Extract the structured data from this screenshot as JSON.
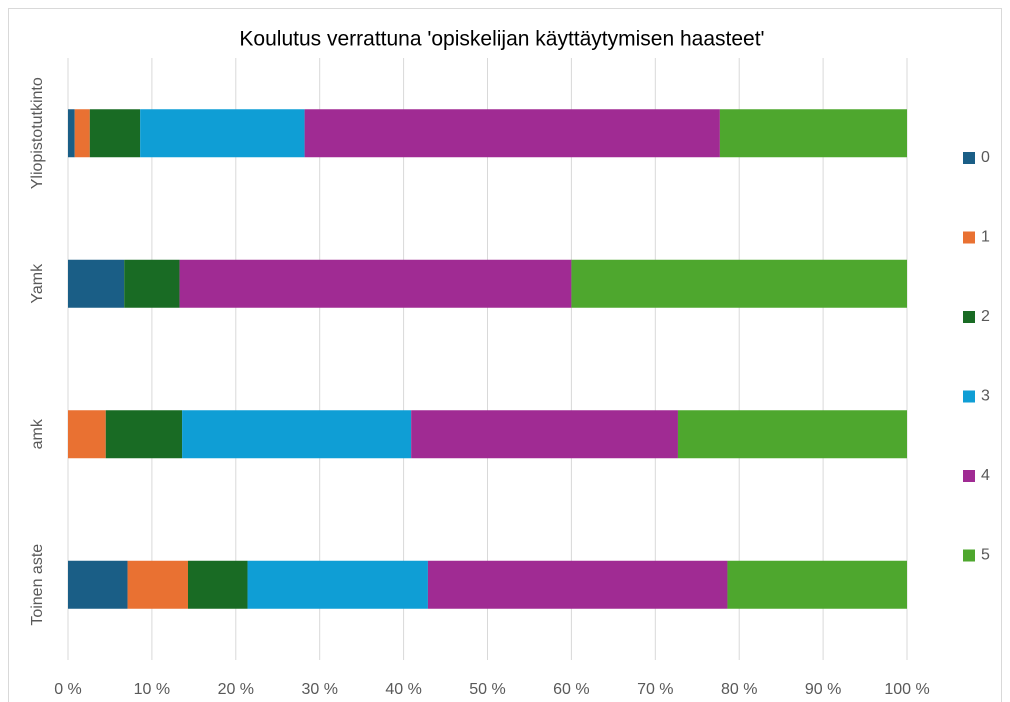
{
  "chart_data": {
    "type": "bar",
    "orientation": "horizontal",
    "stacked": true,
    "title": "Koulutus verrattuna 'opiskelijan käyttäytymisen haasteet'",
    "categories": [
      "Yliopistotutkinto",
      "Yamk",
      "amk",
      "Toinen aste"
    ],
    "series": [
      {
        "name": "0",
        "color": "#1a5e86",
        "values": [
          0.8,
          6.7,
          0,
          7.1
        ]
      },
      {
        "name": "1",
        "color": "#e97132",
        "values": [
          1.8,
          0,
          4.5,
          7.2
        ]
      },
      {
        "name": "2",
        "color": "#196b24",
        "values": [
          6.0,
          6.6,
          9.1,
          7.1
        ]
      },
      {
        "name": "3",
        "color": "#0f9ed5",
        "values": [
          19.6,
          0,
          27.3,
          21.5
        ]
      },
      {
        "name": "4",
        "color": "#a02b93",
        "values": [
          49.5,
          46.7,
          31.8,
          35.7
        ]
      },
      {
        "name": "5",
        "color": "#4ea72e",
        "values": [
          22.3,
          40.0,
          27.3,
          21.4
        ]
      }
    ],
    "xlim": [
      0,
      100
    ],
    "xticks": [
      {
        "value": 0,
        "label": "0 %"
      },
      {
        "value": 10,
        "label": "10 %"
      },
      {
        "value": 20,
        "label": "20 %"
      },
      {
        "value": 30,
        "label": "30 %"
      },
      {
        "value": 40,
        "label": "40 %"
      },
      {
        "value": 50,
        "label": "50 %"
      },
      {
        "value": 60,
        "label": "60 %"
      },
      {
        "value": 70,
        "label": "70 %"
      },
      {
        "value": 80,
        "label": "80 %"
      },
      {
        "value": 90,
        "label": "90 %"
      },
      {
        "value": 100,
        "label": "100 %"
      }
    ],
    "grid": true,
    "legend": "right"
  }
}
